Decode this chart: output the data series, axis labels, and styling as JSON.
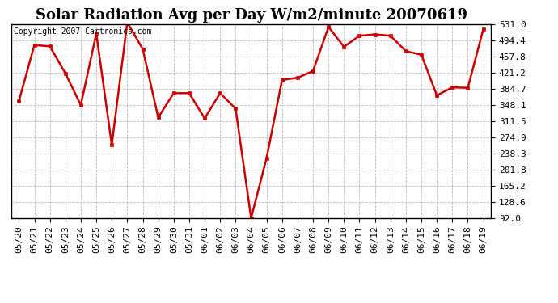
{
  "title": "Solar Radiation Avg per Day W/m2/minute 20070619",
  "copyright_text": "Copyright 2007 Cartronics.com",
  "dates": [
    "05/20",
    "05/21",
    "05/22",
    "05/23",
    "05/24",
    "05/25",
    "05/26",
    "05/27",
    "05/28",
    "05/29",
    "05/30",
    "05/31",
    "06/01",
    "06/02",
    "06/03",
    "06/04",
    "06/05",
    "06/06",
    "06/07",
    "06/08",
    "06/09",
    "06/10",
    "06/11",
    "06/12",
    "06/13",
    "06/14",
    "06/15",
    "06/16",
    "06/17",
    "06/18",
    "06/19"
  ],
  "values": [
    357,
    484,
    481,
    420,
    348,
    510,
    258,
    535,
    475,
    320,
    375,
    375,
    318,
    375,
    340,
    92,
    228,
    405,
    410,
    425,
    525,
    480,
    505,
    508,
    505,
    470,
    462,
    370,
    388,
    387,
    520
  ],
  "line_color": "#cc0000",
  "marker_color": "#cc0000",
  "bg_color": "#ffffff",
  "grid_color": "#bbbbbb",
  "y_ticks": [
    92.0,
    128.6,
    165.2,
    201.8,
    238.3,
    274.9,
    311.5,
    348.1,
    384.7,
    421.2,
    457.8,
    494.4,
    531.0
  ],
  "ylim_min": 92.0,
  "ylim_max": 531.0,
  "title_fontsize": 13,
  "tick_fontsize": 8,
  "copyright_fontsize": 7
}
